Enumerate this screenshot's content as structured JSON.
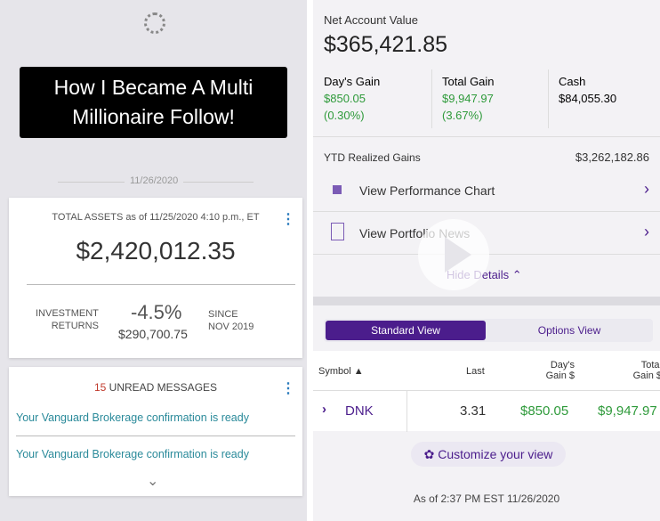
{
  "left": {
    "caption": [
      "How I Became A Multi",
      "Millionaire Follow!"
    ],
    "date": "11/26/2020",
    "assets": {
      "label": "TOTAL ASSETS as of 11/25/2020 4:10 p.m., ET",
      "value": "$2,420,012.35",
      "returns_label": [
        "INVESTMENT",
        "RETURNS"
      ],
      "returns_pct": "-4.5%",
      "returns_amount": "$290,700.75",
      "since": [
        "SINCE",
        "NOV 2019"
      ]
    },
    "messages": {
      "count": "15",
      "title": "UNREAD MESSAGES",
      "items": [
        "Your Vanguard Brokerage confirmation is ready",
        "Your Vanguard Brokerage confirmation is ready"
      ]
    }
  },
  "right": {
    "nav_label": "Net Account Value",
    "nav_value": "$365,421.85",
    "stats": [
      {
        "label": "Day's Gain",
        "value": "$850.05",
        "sub": "(0.30%)"
      },
      {
        "label": "Total Gain",
        "value": "$9,947.97",
        "sub": "(3.67%)"
      },
      {
        "label": "Cash",
        "value": "$84,055.30"
      }
    ],
    "ytd_label": "YTD Realized Gains",
    "ytd_value": "$3,262,182.86",
    "links": [
      "View Performance Chart",
      "View Portfolio News"
    ],
    "hide": "Hide Details",
    "tabs": [
      "Standard View",
      "Options View"
    ],
    "table": {
      "headers": [
        "Symbol ▲",
        "Last",
        "Day's Gain $",
        "Total Gain $"
      ],
      "row": [
        "DNK",
        "3.31",
        "$850.05",
        "$9,947.97"
      ]
    },
    "customize": "Customize your view",
    "as_of": "As of 2:37 PM EST 11/26/2020"
  }
}
